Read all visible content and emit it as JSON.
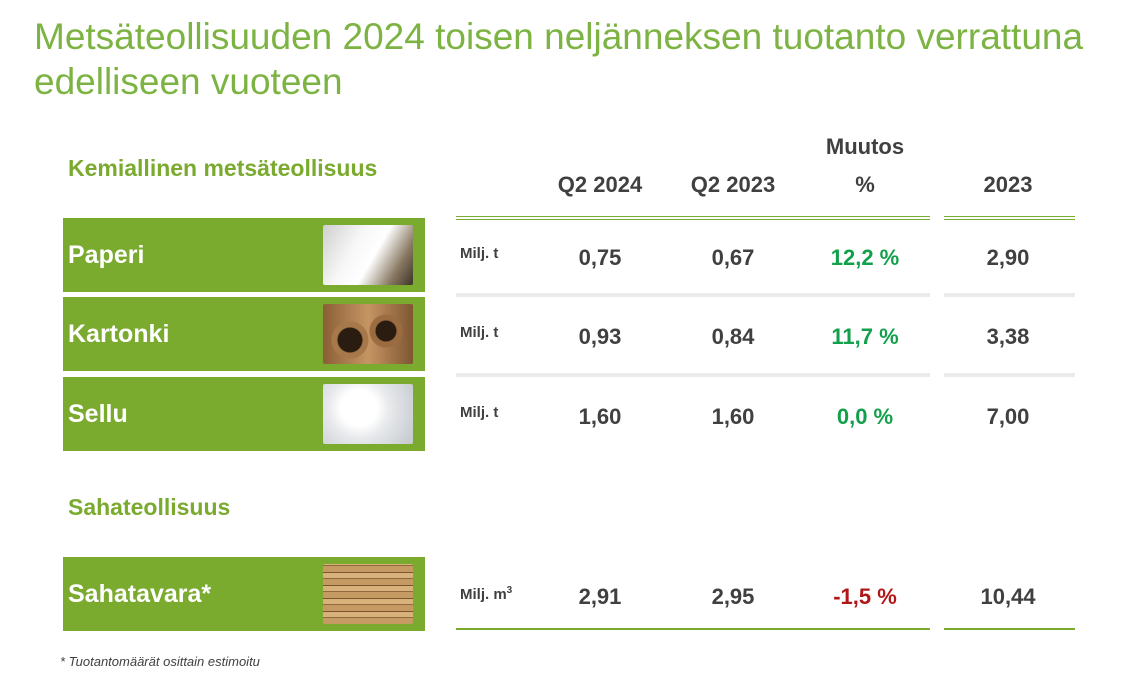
{
  "title": "Metsäteollisuuden 2024 toisen neljänneksen tuotanto verrattuna edelliseen vuoteen",
  "sections": {
    "chemical": "Kemiallinen metsäteollisuus",
    "sawmill": "Sahateollisuus"
  },
  "headers": {
    "q2_2024": "Q2 2024",
    "q2_2023": "Q2 2023",
    "change_line1": "Muutos",
    "change_line2": "%",
    "year_2023": "2023"
  },
  "rows": [
    {
      "label": "Paperi",
      "icon": "paper-roll-icon",
      "unit": "Milj. t",
      "q2_2024": "0,75",
      "q2_2023": "0,67",
      "change": "12,2 %",
      "year_2023": "2,90"
    },
    {
      "label": "Kartonki",
      "icon": "cardboard-roll-icon",
      "unit": "Milj. t",
      "q2_2024": "0,93",
      "q2_2023": "0,84",
      "change": "11,7 %",
      "year_2023": "3,38"
    },
    {
      "label": "Sellu",
      "icon": "pulp-icon",
      "unit": "Milj. t",
      "q2_2024": "1,60",
      "q2_2023": "1,60",
      "change": "0,0 %",
      "year_2023": "7,00"
    },
    {
      "label": "Sahatavara*",
      "icon": "lumber-stack-icon",
      "unit": "Milj. m",
      "unit_sup": "3",
      "q2_2024": "2,91",
      "q2_2023": "2,95",
      "change": "-1,5 %",
      "year_2023": "10,44"
    }
  ],
  "colors": {
    "accent_green": "#7aaa2e",
    "title_green": "#7cb342",
    "positive": "#12a04b",
    "negative": "#b01818"
  },
  "footnote": "* Tuotantomäärät osittain estimoitu"
}
